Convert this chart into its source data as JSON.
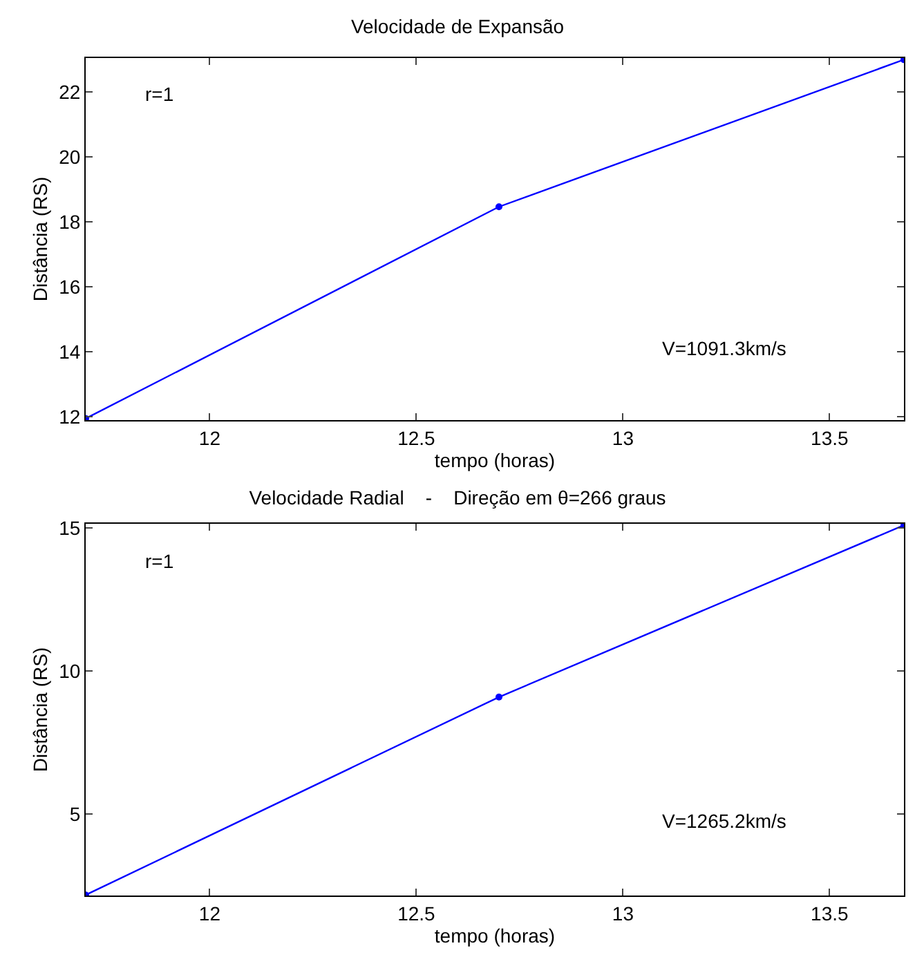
{
  "chart_data": [
    {
      "type": "line",
      "title": "Velocidade de Expansão",
      "xlabel": "tempo (horas)",
      "ylabel": "Distância (RS)",
      "x": [
        11.7,
        12.7,
        13.68
      ],
      "series": [
        {
          "color": "#0000ff",
          "values": [
            11.95,
            18.47,
            23.0
          ]
        }
      ],
      "xlim": [
        11.7,
        13.68
      ],
      "xticks": [
        12,
        12.5,
        13,
        13.5
      ],
      "ylim": [
        11.9,
        23.05
      ],
      "yticks": [
        12,
        14,
        16,
        18,
        20,
        22
      ],
      "grid": false,
      "marker": "circle",
      "line_style": "solid",
      "annotations": [
        "r=1",
        "V=1091.3km/s"
      ]
    },
    {
      "type": "line",
      "title": "Velocidade Radial    -    Direção em θ=266 graus",
      "xlabel": "tempo (horas)",
      "ylabel": "Distância (RS)",
      "x": [
        11.7,
        12.7,
        13.68
      ],
      "series": [
        {
          "color": "#0000ff",
          "values": [
            2.17,
            9.09,
            15.1
          ]
        }
      ],
      "xlim": [
        11.7,
        13.68
      ],
      "xticks": [
        12,
        12.5,
        13,
        13.5
      ],
      "ylim": [
        2.15,
        15.15
      ],
      "yticks": [
        5,
        10,
        15
      ],
      "grid": false,
      "marker": "circle",
      "line_style": "solid",
      "annotations": [
        "r=1",
        "V=1265.2km/s"
      ]
    }
  ]
}
